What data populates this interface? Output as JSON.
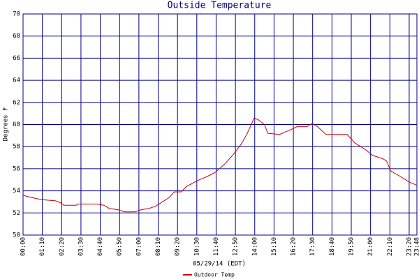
{
  "chart_data": {
    "type": "line",
    "title": "Outside Temperature",
    "x_label": "05/29/14 (EDT)",
    "y_label": "Degrees F",
    "x": [
      0,
      30,
      68,
      118,
      138,
      148,
      193,
      198,
      268,
      293,
      313,
      343,
      368,
      405,
      430,
      455,
      480,
      505,
      530,
      548,
      573,
      593,
      630,
      668,
      698,
      730,
      763,
      793,
      813,
      838,
      855,
      875,
      888,
      930,
      948,
      968,
      993,
      1030,
      1048,
      1068,
      1098,
      1175,
      1205,
      1243,
      1268,
      1305,
      1318,
      1333,
      1368,
      1400,
      1428
    ],
    "series": [
      {
        "name": "Outdoor Temp",
        "color": "#cc0000",
        "values": [
          53.6,
          53.4,
          53.2,
          53.1,
          52.9,
          52.7,
          52.7,
          52.8,
          52.8,
          52.7,
          52.4,
          52.3,
          52.1,
          52.1,
          52.3,
          52.4,
          52.6,
          53.0,
          53.4,
          53.9,
          53.9,
          54.4,
          54.9,
          55.3,
          55.7,
          56.4,
          57.3,
          58.3,
          59.2,
          60.6,
          60.4,
          60.0,
          59.2,
          59.1,
          59.3,
          59.5,
          59.8,
          59.8,
          60.1,
          59.8,
          59.1,
          59.1,
          58.3,
          57.7,
          57.2,
          56.9,
          56.7,
          55.8,
          55.3,
          54.8,
          54.5
        ]
      }
    ],
    "xlim": [
      0,
      1428
    ],
    "xticks": [
      {
        "value": 0,
        "label": "00:00"
      },
      {
        "value": 70,
        "label": "01:10"
      },
      {
        "value": 140,
        "label": "02:20"
      },
      {
        "value": 210,
        "label": "03:30"
      },
      {
        "value": 280,
        "label": "04:40"
      },
      {
        "value": 350,
        "label": "05:50"
      },
      {
        "value": 420,
        "label": "07:00"
      },
      {
        "value": 490,
        "label": "08:10"
      },
      {
        "value": 560,
        "label": "09:20"
      },
      {
        "value": 630,
        "label": "10:30"
      },
      {
        "value": 700,
        "label": "11:40"
      },
      {
        "value": 770,
        "label": "12:50"
      },
      {
        "value": 840,
        "label": "14:00"
      },
      {
        "value": 910,
        "label": "15:10"
      },
      {
        "value": 980,
        "label": "16:20"
      },
      {
        "value": 1050,
        "label": "17:30"
      },
      {
        "value": 1120,
        "label": "18:40"
      },
      {
        "value": 1190,
        "label": "19:50"
      },
      {
        "value": 1260,
        "label": "21:00"
      },
      {
        "value": 1330,
        "label": "22:10"
      },
      {
        "value": 1400,
        "label": "23:20"
      },
      {
        "value": 1428,
        "label": "23:48"
      }
    ],
    "ylim": [
      50,
      70
    ],
    "yticks": [
      50,
      52,
      54,
      56,
      58,
      60,
      62,
      64,
      66,
      68,
      70
    ],
    "grid": true
  }
}
